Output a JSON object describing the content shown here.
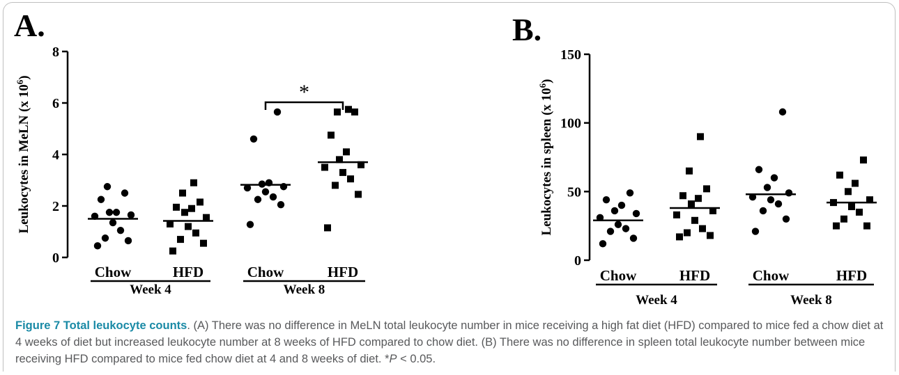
{
  "chart_data": [
    {
      "type": "scatter",
      "panel_label": "A.",
      "ylabel": "Leukocytes in MeLN (x 10",
      "ylabel_superscript": "6",
      "ylabel_suffix": ")",
      "ylim": [
        0,
        8
      ],
      "yticks": [
        "0",
        "2",
        "4",
        "6",
        "8"
      ],
      "categories": [
        "Chow",
        "HFD",
        "Chow",
        "HFD"
      ],
      "groups": [
        {
          "label": "Week 4",
          "categories": [
            0,
            1
          ]
        },
        {
          "label": "Week 8",
          "categories": [
            2,
            3
          ]
        }
      ],
      "significance": {
        "from": 2,
        "to": 3,
        "label": "*"
      },
      "series": [
        {
          "marker": "circle",
          "mean": 1.5,
          "values": [
            0.45,
            0.65,
            0.75,
            1.05,
            1.35,
            1.6,
            1.65,
            1.75,
            1.75,
            2.25,
            2.5,
            2.75
          ]
        },
        {
          "marker": "square",
          "mean": 1.42,
          "values": [
            0.25,
            0.55,
            0.7,
            0.95,
            1.2,
            1.3,
            1.55,
            1.75,
            1.9,
            1.95,
            2.15,
            2.5,
            2.9
          ]
        },
        {
          "marker": "circle",
          "mean": 2.82,
          "values": [
            1.28,
            2.05,
            2.25,
            2.35,
            2.55,
            2.7,
            2.75,
            2.85,
            2.9,
            4.6,
            5.65
          ]
        },
        {
          "marker": "square",
          "mean": 3.7,
          "values": [
            1.15,
            2.45,
            2.8,
            3.05,
            3.3,
            3.5,
            3.6,
            3.8,
            4.1,
            4.75,
            5.65,
            5.65,
            5.75
          ]
        }
      ]
    },
    {
      "type": "scatter",
      "panel_label": "B.",
      "ylabel": "Leukocytes in spleen (x 10",
      "ylabel_superscript": "6",
      "ylabel_suffix": ")",
      "ylim": [
        0,
        150
      ],
      "yticks": [
        "0",
        "50",
        "100",
        "150"
      ],
      "categories": [
        "Chow",
        "HFD",
        "Chow",
        "HFD"
      ],
      "groups": [
        {
          "label": "Week 4",
          "categories": [
            0,
            1
          ]
        },
        {
          "label": "Week 8",
          "categories": [
            2,
            3
          ]
        }
      ],
      "series": [
        {
          "marker": "circle",
          "mean": 29,
          "values": [
            12,
            16,
            21,
            23,
            26,
            31,
            34,
            36,
            40,
            44,
            49
          ]
        },
        {
          "marker": "square",
          "mean": 38,
          "values": [
            17,
            18,
            20,
            23,
            29,
            33,
            36,
            41,
            45,
            47,
            52,
            65,
            90
          ]
        },
        {
          "marker": "circle",
          "mean": 48,
          "values": [
            21,
            30,
            36,
            41,
            44,
            46,
            49,
            53,
            60,
            66,
            108
          ]
        },
        {
          "marker": "square",
          "mean": 42,
          "values": [
            25,
            25,
            30,
            35,
            39,
            42,
            44,
            50,
            56,
            62,
            73
          ]
        }
      ]
    }
  ],
  "caption": {
    "title": "Figure 7 Total leukocyte counts",
    "text_main": ". (A) There was no difference in MeLN total leukocyte number in mice receiving a high fat diet (HFD) compared to mice fed a chow diet at 4 weeks of diet but increased leukocyte number at 8 weeks of HFD compared to chow diet. (B) There was no difference in spleen total leukocyte number between mice receiving HFD compared to mice fed chow diet at 4 and 8 weeks of diet. *",
    "p_symbol": "P",
    "p_text": " < 0.05."
  }
}
